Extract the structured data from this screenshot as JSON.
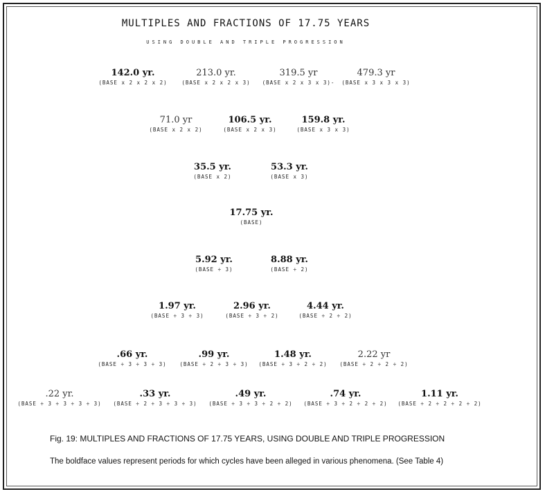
{
  "title": "MULTIPLES AND FRACTIONS OF 17.75 YEARS",
  "subtitle": "USING DOUBLE AND TRIPLE PROGRESSION",
  "rows": [
    [
      {
        "value": "142.0 yr.",
        "formula": "(BASE x 2 x 2 x 2)",
        "bold": true
      },
      {
        "value": "213.0 yr.",
        "formula": "(BASE x 2 x 2 x 3)",
        "bold": false
      },
      {
        "value": "319.5 yr",
        "formula": "(BASE x 2 x 3 x 3)-",
        "bold": false
      },
      {
        "value": "479.3 yr",
        "formula": "(BASE x 3 x 3 x 3)",
        "bold": false
      }
    ],
    [
      {
        "value": "71.0 yr",
        "formula": "(BASE x 2 x 2)",
        "bold": false
      },
      {
        "value": "106.5 yr.",
        "formula": "(BASE x 2 x 3)",
        "bold": true
      },
      {
        "value": "159.8 yr.",
        "formula": "(BASE x 3 x 3)",
        "bold": true
      }
    ],
    [
      {
        "value": "35.5 yr.",
        "formula": "(BASE x 2)",
        "bold": true
      },
      {
        "value": "53.3 yr.",
        "formula": "(BASE x 3)",
        "bold": true
      }
    ],
    [
      {
        "value": "17.75 yr.",
        "formula": "(BASE)",
        "bold": true
      }
    ],
    [
      {
        "value": "5.92 yr.",
        "formula": "(BASE ÷ 3)",
        "bold": true
      },
      {
        "value": "8.88 yr.",
        "formula": "(BASE ÷ 2)",
        "bold": true
      }
    ],
    [
      {
        "value": "1.97 yr.",
        "formula": "(BASE ÷ 3 ÷ 3)",
        "bold": true
      },
      {
        "value": "2.96 yr.",
        "formula": "(BASE ÷ 3 ÷ 2)",
        "bold": true
      },
      {
        "value": "4.44 yr.",
        "formula": "(BASE ÷ 2 ÷ 2)",
        "bold": true
      }
    ],
    [
      {
        "value": ".66 yr.",
        "formula": "(BASE ÷ 3 ÷ 3 ÷ 3)",
        "bold": true
      },
      {
        "value": ".99 yr.",
        "formula": "(BASE ÷ 2 ÷ 3 ÷ 3)",
        "bold": true
      },
      {
        "value": "1.48 yr.",
        "formula": "(BASE ÷ 3 ÷ 2 ÷ 2)",
        "bold": true
      },
      {
        "value": "2.22 yr",
        "formula": "(BASE ÷ 2 ÷ 2 ÷ 2)",
        "bold": false
      }
    ],
    [
      {
        "value": ".22 yr.",
        "formula": "(BASE ÷ 3 ÷ 3 ÷ 3 ÷ 3)",
        "bold": false
      },
      {
        "value": ".33 yr.",
        "formula": "(BASE ÷ 2 ÷ 3 ÷ 3 ÷ 3)",
        "bold": true
      },
      {
        "value": ".49 yr.",
        "formula": "(BASE ÷ 3 ÷ 3 ÷ 2 ÷ 2)",
        "bold": true
      },
      {
        "value": ".74 yr.",
        "formula": "(BASE ÷ 3 ÷ 2 ÷ 2 ÷ 2)",
        "bold": true
      },
      {
        "value": "1.11 yr.",
        "formula": "(BASE ÷ 2 ÷ 2 ÷ 2 ÷ 2)",
        "bold": true
      }
    ]
  ],
  "caption": "Fig. 19: MULTIPLES AND FRACTIONS OF 17.75 YEARS, USING DOUBLE AND TRIPLE PROGRESSION",
  "note": "The boldface values represent periods for which cycles have been alleged in various phenomena. (See Table 4)"
}
